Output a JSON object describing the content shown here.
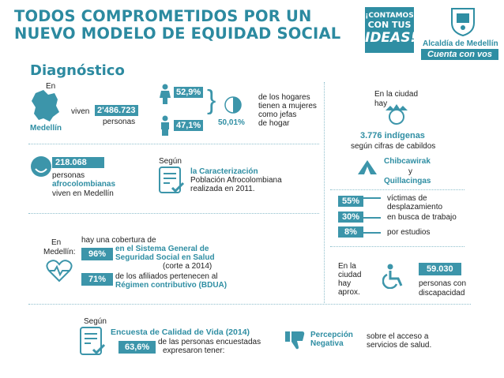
{
  "header": {
    "title_line1": "TODOS COMPROMETIDOS POR UN",
    "title_line2": "NUEVO MODELO DE EQUIDAD SOCIAL",
    "campaign_line1": "¡CONTAMOS",
    "campaign_line2": "CON TUS",
    "campaign_line3": "IDEAS!",
    "org_name": "Alcaldía de Medellín",
    "org_slogan": "Cuenta con vos"
  },
  "section_title": "Diagnóstico",
  "population": {
    "prefix": "En",
    "city": "Medellín",
    "verb": "viven",
    "total": "2'486.723",
    "unit": "personas"
  },
  "households": {
    "pct_women_head": "52,9%",
    "pct_men_head": "47,1%",
    "pct_total": "50,01%",
    "description": [
      "de los hogares",
      "tienen a mujeres",
      "como jefas",
      "de hogar"
    ]
  },
  "indigenous": {
    "intro_line1": "En la ciudad",
    "intro_line2": "hay",
    "count": "3.776 indígenas",
    "source": "según cifras de cabildos",
    "group1": "Chibcawirak",
    "conjunction": "y",
    "group2": "Quillacingas"
  },
  "afro": {
    "count": "218.068",
    "line1": "personas",
    "line2": "afrocolombianas",
    "line3": "viven en Medellín",
    "according": "Según",
    "study": "la Caracterización",
    "study_line2": "Población Afrocolombiana",
    "study_line3": "realizada en 2011."
  },
  "displacement": {
    "items": [
      {
        "pct": "55%",
        "label_line1": "víctimas de",
        "label_line2": "desplazamiento"
      },
      {
        "pct": "30%",
        "label_line1": "en busca de trabajo",
        "label_line2": ""
      },
      {
        "pct": "8%",
        "label_line1": "por estudios",
        "label_line2": ""
      }
    ]
  },
  "health": {
    "prefix_line1": "En",
    "prefix_line2": "Medellín:",
    "intro": "hay una cobertura de",
    "pct_coverage": "96%",
    "system_line1": "en el Sistema General de",
    "system_line2": "Seguridad Social en Salud",
    "year_note": "(corte a 2014)",
    "pct_subsidized": "71%",
    "subsidized_line1": "de los afiliados pertenecen al",
    "subsidized_line2": "Régimen contributivo (BDUA)"
  },
  "disability": {
    "intro_line1": "En la",
    "intro_line2": "ciudad",
    "intro_line3": "hay",
    "intro_line4": "aprox.",
    "count": "59.030",
    "line1": "personas con",
    "line2": "discapacidad"
  },
  "survey": {
    "according": "Según",
    "name": "Encuesta de Calidad de Vida (2014)",
    "line1": "de las personas encuestadas",
    "line2": "expresaron tener:",
    "pct": "63,6%",
    "perception_line1": "Percepción",
    "perception_line2": "Negativa",
    "about_line1": "sobre el acceso a",
    "about_line2": "servicios de salud."
  },
  "colors": {
    "accent": "#3c95aa",
    "title": "#2c8aa0"
  }
}
